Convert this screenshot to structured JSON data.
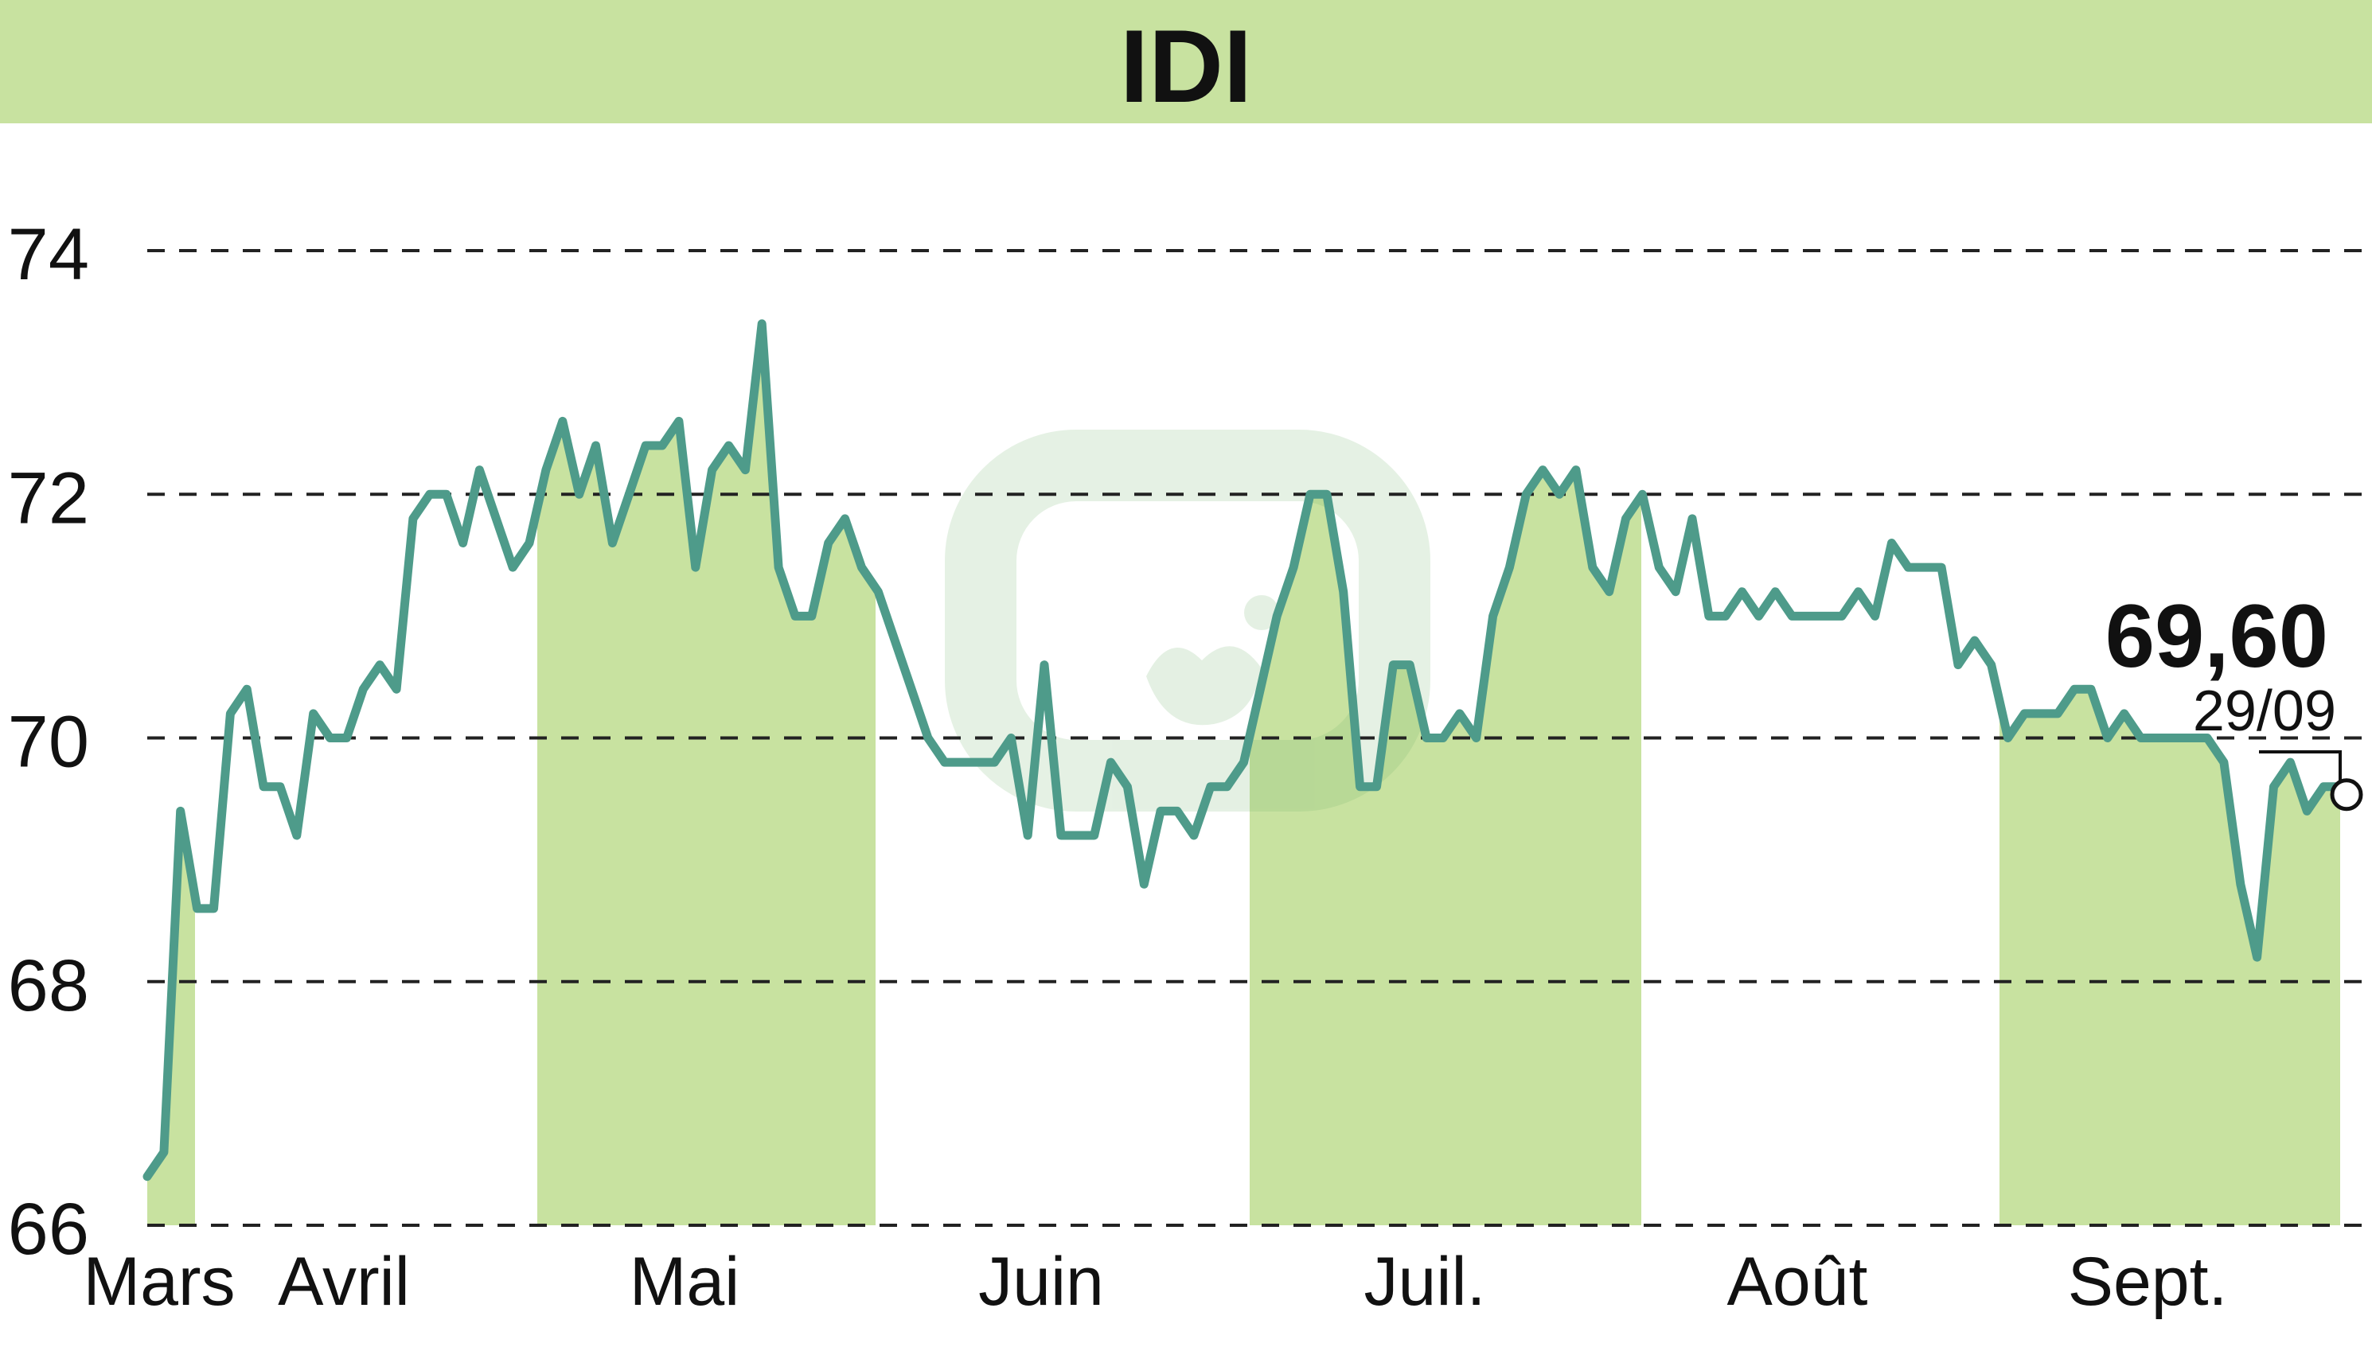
{
  "chart_data": {
    "type": "line",
    "title": "IDI",
    "ylim": [
      66,
      74
    ],
    "y_ticks": [
      "66",
      "68",
      "70",
      "72",
      "74"
    ],
    "x_month_labels": [
      "Mars",
      "Avril",
      "Mai",
      "Juin",
      "Juil.",
      "Août",
      "Sept."
    ],
    "shaded_months": [
      "Mars",
      "Mai",
      "Juil.",
      "Sept."
    ],
    "grid": "horizontal dashed",
    "last_value_label": "69,60",
    "last_date_label": "29/09",
    "series": [
      {
        "values": [
          66.4,
          66.6,
          69.4,
          68.6,
          68.6,
          70.2,
          70.4,
          69.6,
          69.6,
          69.2,
          70.2,
          70.0,
          70.0,
          70.4,
          70.6,
          70.4,
          71.8,
          72.0,
          72.0,
          71.6,
          72.2,
          71.8,
          71.4,
          71.6,
          72.2,
          72.6,
          72.0,
          72.4,
          71.6,
          72.0,
          72.4,
          72.4,
          72.6,
          71.4,
          72.2,
          72.4,
          72.2,
          73.4,
          71.4,
          71.0,
          71.0,
          71.6,
          71.8,
          71.4,
          71.2,
          70.8,
          70.4,
          70.0,
          69.8,
          69.8,
          69.8,
          69.8,
          70.0,
          69.2,
          70.6,
          69.2,
          69.2,
          69.2,
          69.8,
          69.6,
          68.8,
          69.4,
          69.4,
          69.2,
          69.6,
          69.6,
          69.8,
          70.4,
          71.0,
          71.4,
          72.0,
          72.0,
          71.2,
          69.6,
          69.6,
          70.6,
          70.6,
          70.0,
          70.0,
          70.2,
          70.0,
          71.0,
          71.4,
          72.0,
          72.2,
          72.0,
          72.2,
          71.4,
          71.2,
          71.8,
          72.0,
          71.4,
          71.2,
          71.8,
          71.0,
          71.0,
          71.2,
          71.0,
          71.2,
          71.0,
          71.0,
          71.0,
          71.0,
          71.2,
          71.0,
          71.6,
          71.4,
          71.4,
          71.4,
          70.6,
          70.8,
          70.6,
          70.0,
          70.2,
          70.2,
          70.2,
          70.4,
          70.4,
          70.0,
          70.2,
          70.0,
          70.0,
          70.0,
          70.0,
          70.0,
          69.8,
          68.8,
          68.2,
          69.6,
          69.8,
          69.4,
          69.6,
          69.6
        ]
      }
    ]
  },
  "colors": {
    "title_band": "#c8e2a0",
    "shade": "#c8e2a0",
    "line": "#4e9b8a",
    "text": "#111111",
    "grid": "#222222"
  }
}
